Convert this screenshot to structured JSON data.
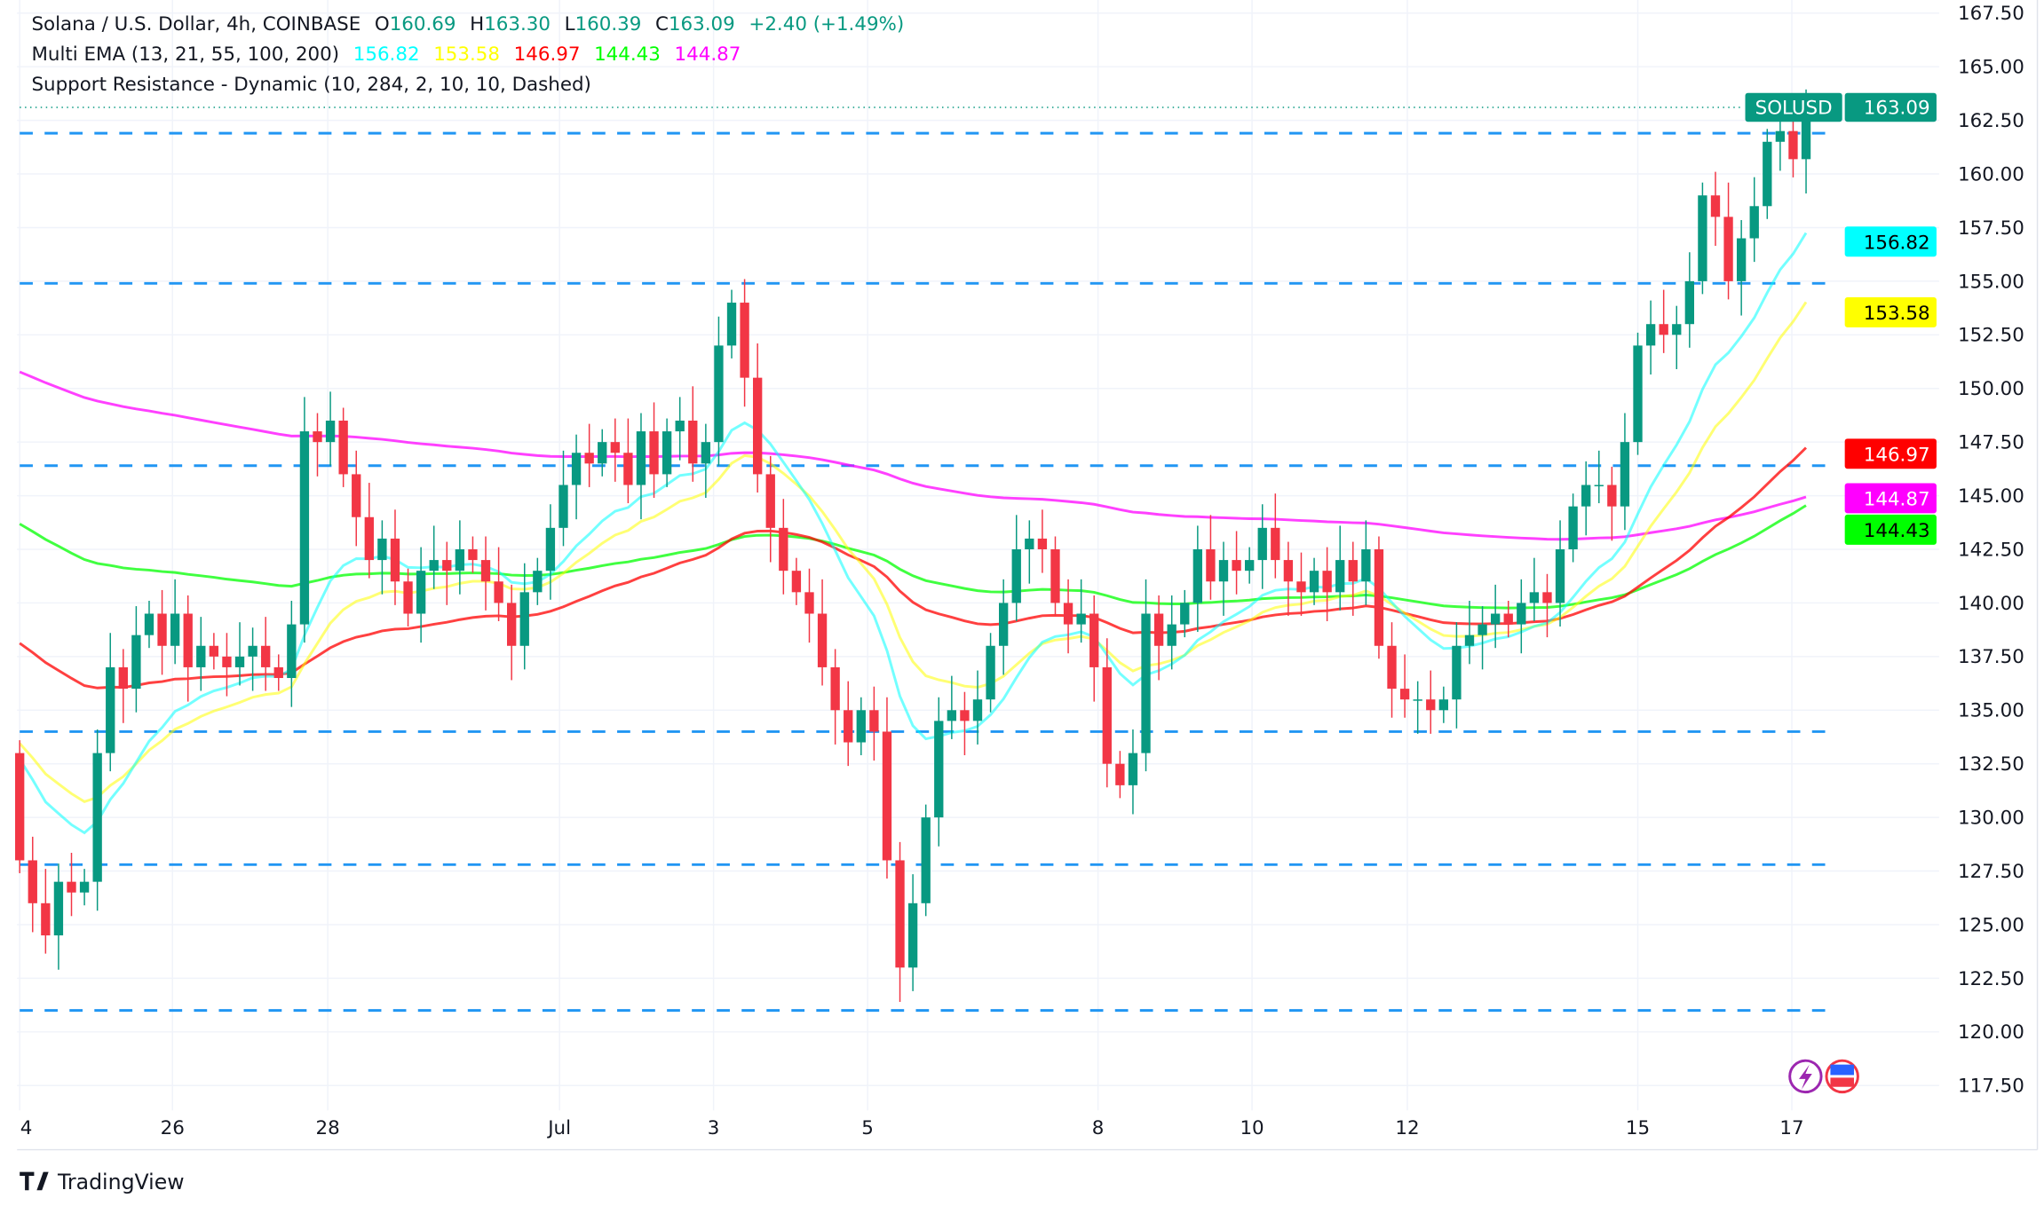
{
  "header": {
    "symbol": "Solana / U.S. Dollar, 4h, COINBASE",
    "o_label": "O",
    "o_value": "160.69",
    "h_label": "H",
    "h_value": "163.30",
    "l_label": "L",
    "l_value": "160.39",
    "c_label": "C",
    "c_value": "163.09",
    "change": "+2.40 (+1.49%)",
    "ema_title": "Multi EMA (13, 21, 55, 100, 200)",
    "ema_values": [
      "156.82",
      "153.58",
      "146.97",
      "144.43",
      "144.87"
    ],
    "sr_title": "Support Resistance - Dynamic (10, 284, 2, 10, 10, Dashed)"
  },
  "badges": {
    "symbol": "SOLUSD",
    "last_price": "163.09",
    "ema13": "156.82",
    "ema21": "153.58",
    "ema55": "146.97",
    "ema200": "144.87",
    "ema100": "144.43"
  },
  "colors": {
    "up": "#089981",
    "down": "#F23645",
    "ema13": "#00FFFF",
    "ema21": "#FFFF00",
    "ema55": "#FF0000",
    "ema100": "#00FF00",
    "ema200": "#FF00FF",
    "sr": "#2196F3"
  },
  "footer": {
    "brand": "TradingView"
  },
  "chart_data": {
    "type": "candlestick",
    "title": "Solana / U.S. Dollar, 4h, COINBASE",
    "ylim": [
      116.25,
      168.75
    ],
    "y_ticks": [
      "167.50",
      "165.00",
      "162.50",
      "160.00",
      "157.50",
      "155.00",
      "152.50",
      "150.00",
      "147.50",
      "145.00",
      "142.50",
      "140.00",
      "137.50",
      "135.00",
      "132.50",
      "130.00",
      "127.50",
      "125.00",
      "122.50",
      "120.00",
      "117.50"
    ],
    "x_ticks": [
      {
        "label": "4",
        "index": 0
      },
      {
        "label": "26",
        "index": 11.8
      },
      {
        "label": "28",
        "index": 23.8
      },
      {
        "label": "Jul",
        "index": 41.7
      },
      {
        "label": "3",
        "index": 53.6
      },
      {
        "label": "5",
        "index": 65.5
      },
      {
        "label": "8",
        "index": 83.3
      },
      {
        "label": "10",
        "index": 95.2
      },
      {
        "label": "12",
        "index": 107.2
      },
      {
        "label": "15",
        "index": 125
      },
      {
        "label": "17",
        "index": 136.9
      }
    ],
    "first_open": 133,
    "closes": [
      128,
      126,
      124.5,
      127,
      126.5,
      127,
      133,
      137,
      136,
      138.5,
      139.5,
      138,
      139.5,
      137,
      138,
      137.5,
      137,
      137.5,
      138,
      137,
      136.5,
      139,
      148,
      147.5,
      148.5,
      146,
      144,
      142,
      143,
      141,
      139.5,
      141.5,
      142,
      141.5,
      142.5,
      142,
      141,
      140,
      138,
      140.5,
      141.5,
      143.5,
      145.5,
      147,
      146.5,
      147.5,
      147,
      145.5,
      148,
      146,
      148,
      148.5,
      146.5,
      147.5,
      152,
      154,
      150.5,
      146,
      143.5,
      141.5,
      140.5,
      139.5,
      137,
      135,
      133.5,
      135,
      134,
      128,
      123,
      126,
      130,
      134.5,
      135,
      134.5,
      135.5,
      138,
      140,
      142.5,
      143,
      142.5,
      140,
      139,
      139.5,
      137,
      132.5,
      131.5,
      133,
      139.5,
      138,
      139,
      140,
      142.5,
      141,
      142,
      141.5,
      142,
      143.5,
      142,
      141,
      140.5,
      141.5,
      140.5,
      142,
      141,
      142.5,
      138,
      136,
      135.5,
      135.5,
      135,
      135.5,
      138,
      138.5,
      139,
      139.5,
      139,
      140,
      140.5,
      140,
      142.5,
      144.5,
      145.5,
      145.5,
      144.5,
      147.5,
      152,
      153,
      152.5,
      153,
      155,
      159,
      158,
      155,
      157,
      158.5,
      161.5,
      162,
      160.69,
      163.09
    ],
    "ema_seeds": {
      "ema13": 133.5,
      "ema21": 134,
      "ema55": 138.5,
      "ema100": 144,
      "ema200": 151
    },
    "support_resistance_levels": [
      161.9,
      154.9,
      146.4,
      134.0,
      127.8,
      121.0
    ],
    "last_price": 163.09
  }
}
